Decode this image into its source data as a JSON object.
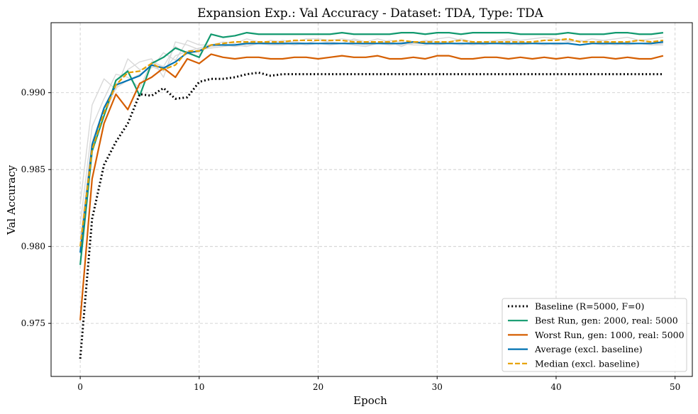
{
  "chart_data": {
    "type": "line",
    "title": "Expansion Exp.: Val Accuracy - Dataset: TDA, Type: TDA",
    "xlabel": "Epoch",
    "ylabel": "Val Accuracy",
    "xlim": [
      -2.45,
      51.45
    ],
    "ylim": [
      0.97155,
      0.99455
    ],
    "xticks": [
      0,
      10,
      20,
      30,
      40,
      50
    ],
    "yticks": [
      0.975,
      0.98,
      0.985,
      0.99
    ],
    "ytick_labels": [
      "0.975",
      "0.980",
      "0.985",
      "0.990"
    ],
    "grid": true,
    "legend_position": "lower-right",
    "background_runs": [
      [
        0.9828,
        0.9892,
        0.9909,
        0.9902,
        0.9922,
        0.9915,
        0.9916,
        0.9926,
        0.9921,
        0.9934,
        0.9931,
        0.9931,
        0.9933,
        0.9932,
        0.9935,
        0.9933,
        0.9932,
        0.9934,
        0.9933,
        0.9935,
        0.9935,
        0.9934,
        0.9935,
        0.9934,
        0.9933,
        0.9935,
        0.9933,
        0.993,
        0.9933,
        0.9933,
        0.9935,
        0.9936,
        0.9934,
        0.9932,
        0.9933,
        0.9934,
        0.9935,
        0.9934,
        0.9935,
        0.9936,
        0.9935,
        0.9934,
        0.9933,
        0.9935,
        0.9934,
        0.9935,
        0.9936,
        0.9934,
        0.9935,
        0.9936
      ],
      [
        0.9814,
        0.9878,
        0.9896,
        0.9912,
        0.991,
        0.9903,
        0.992,
        0.9917,
        0.993,
        0.9925,
        0.9928,
        0.993,
        0.9931,
        0.9931,
        0.9933,
        0.9932,
        0.9934,
        0.9933,
        0.9933,
        0.9932,
        0.9934,
        0.9933,
        0.9932,
        0.9935,
        0.9933,
        0.9932,
        0.9934,
        0.9933,
        0.9932,
        0.9934,
        0.9933,
        0.9933,
        0.9935,
        0.9933,
        0.9932,
        0.9933,
        0.9934,
        0.9933,
        0.9932,
        0.9934,
        0.9935,
        0.9933,
        0.9934,
        0.9933,
        0.9934,
        0.9932,
        0.9933,
        0.9934,
        0.9933,
        0.9932
      ],
      [
        0.9804,
        0.9868,
        0.989,
        0.9905,
        0.9915,
        0.992,
        0.9922,
        0.991,
        0.9933,
        0.9931,
        0.9928,
        0.9929,
        0.993,
        0.9931,
        0.993,
        0.9932,
        0.9931,
        0.9931,
        0.9932,
        0.9931,
        0.9932,
        0.9933,
        0.9932,
        0.9931,
        0.993,
        0.9932,
        0.9931,
        0.9932,
        0.9931,
        0.9931,
        0.9932,
        0.9932,
        0.9931,
        0.9932,
        0.9931,
        0.9933,
        0.9932,
        0.9931,
        0.9932,
        0.9932,
        0.9931,
        0.9932,
        0.9931,
        0.9932,
        0.9931,
        0.9932,
        0.9931,
        0.9932,
        0.9931,
        0.9931
      ],
      [
        0.9798,
        0.9862,
        0.9885,
        0.9903,
        0.9908,
        0.9912,
        0.9917,
        0.9914,
        0.9924,
        0.9927,
        0.9929,
        0.9931,
        0.9931,
        0.993,
        0.9931,
        0.9932,
        0.9931,
        0.9932,
        0.9931,
        0.9932,
        0.9932,
        0.9931,
        0.9932,
        0.9932,
        0.9931,
        0.9932,
        0.9933,
        0.9931,
        0.9932,
        0.9932,
        0.9931,
        0.9932,
        0.9932,
        0.9931,
        0.9932,
        0.9932,
        0.9931,
        0.9932,
        0.9932,
        0.9931,
        0.9932,
        0.9932,
        0.9931,
        0.9932,
        0.9932,
        0.9931,
        0.9932,
        0.9932,
        0.9931,
        0.9932
      ]
    ],
    "series": [
      {
        "name": "Baseline (R=5000, F=0)",
        "color": "#000000",
        "style": "dotted",
        "values": [
          0.9727,
          0.9818,
          0.9853,
          0.9868,
          0.988,
          0.9899,
          0.9898,
          0.9903,
          0.9896,
          0.9897,
          0.9907,
          0.9909,
          0.9909,
          0.991,
          0.9912,
          0.9913,
          0.9911,
          0.9912,
          0.9912,
          0.9912,
          0.9912,
          0.9912,
          0.9912,
          0.9912,
          0.9912,
          0.9912,
          0.9912,
          0.9912,
          0.9912,
          0.9912,
          0.9912,
          0.9912,
          0.9912,
          0.9912,
          0.9912,
          0.9912,
          0.9912,
          0.9912,
          0.9912,
          0.9912,
          0.9912,
          0.9912,
          0.9912,
          0.9912,
          0.9912,
          0.9912,
          0.9912,
          0.9912,
          0.9912,
          0.9912
        ]
      },
      {
        "name": "Best Run, gen: 2000, real: 5000",
        "color": "#11996e",
        "style": "solid",
        "values": [
          0.9788,
          0.9862,
          0.9885,
          0.9908,
          0.9914,
          0.9898,
          0.9919,
          0.9923,
          0.9929,
          0.9926,
          0.9923,
          0.9938,
          0.9936,
          0.9937,
          0.9939,
          0.9938,
          0.9938,
          0.9938,
          0.9938,
          0.9938,
          0.9938,
          0.9938,
          0.9939,
          0.9938,
          0.9938,
          0.9938,
          0.9938,
          0.9939,
          0.9939,
          0.9938,
          0.9939,
          0.9939,
          0.9938,
          0.9939,
          0.9939,
          0.9939,
          0.9939,
          0.9938,
          0.9938,
          0.9938,
          0.9938,
          0.9939,
          0.9938,
          0.9938,
          0.9938,
          0.9939,
          0.9939,
          0.9938,
          0.9938,
          0.9939
        ]
      },
      {
        "name": "Worst Run, gen: 1000, real: 5000",
        "color": "#d55e00",
        "style": "solid",
        "values": [
          0.9752,
          0.9844,
          0.988,
          0.9899,
          0.9889,
          0.9906,
          0.991,
          0.9916,
          0.991,
          0.9922,
          0.9919,
          0.9925,
          0.9923,
          0.9922,
          0.9923,
          0.9923,
          0.9922,
          0.9922,
          0.9923,
          0.9923,
          0.9922,
          0.9923,
          0.9924,
          0.9923,
          0.9923,
          0.9924,
          0.9922,
          0.9922,
          0.9923,
          0.9922,
          0.9924,
          0.9924,
          0.9922,
          0.9922,
          0.9923,
          0.9923,
          0.9922,
          0.9923,
          0.9922,
          0.9923,
          0.9922,
          0.9923,
          0.9922,
          0.9923,
          0.9923,
          0.9922,
          0.9923,
          0.9922,
          0.9922,
          0.9924
        ]
      },
      {
        "name": "Average (excl. baseline)",
        "color": "#0072b2",
        "style": "solid",
        "values": [
          0.9796,
          0.9866,
          0.989,
          0.9905,
          0.9908,
          0.9911,
          0.9918,
          0.9916,
          0.992,
          0.9926,
          0.9927,
          0.9931,
          0.9931,
          0.9931,
          0.9932,
          0.9932,
          0.9932,
          0.9932,
          0.9932,
          0.9932,
          0.9932,
          0.9932,
          0.9932,
          0.9932,
          0.9932,
          0.9932,
          0.9932,
          0.9932,
          0.9933,
          0.9932,
          0.9932,
          0.9932,
          0.9932,
          0.9932,
          0.9932,
          0.9932,
          0.9932,
          0.9932,
          0.9932,
          0.9932,
          0.9932,
          0.9932,
          0.9931,
          0.9932,
          0.9932,
          0.9932,
          0.9932,
          0.9932,
          0.9932,
          0.9933
        ]
      },
      {
        "name": "Median (excl. baseline)",
        "color": "#e69f00",
        "style": "dashed",
        "values": [
          0.98,
          0.9863,
          0.9887,
          0.9905,
          0.9913,
          0.9914,
          0.9919,
          0.9915,
          0.9918,
          0.9927,
          0.9927,
          0.9931,
          0.9932,
          0.9933,
          0.9933,
          0.9933,
          0.9933,
          0.9933,
          0.9934,
          0.9934,
          0.9934,
          0.9934,
          0.9934,
          0.9933,
          0.9933,
          0.9933,
          0.9933,
          0.9934,
          0.9933,
          0.9933,
          0.9933,
          0.9933,
          0.9934,
          0.9933,
          0.9933,
          0.9933,
          0.9933,
          0.9933,
          0.9933,
          0.9934,
          0.9934,
          0.9935,
          0.9933,
          0.9933,
          0.9933,
          0.9933,
          0.9933,
          0.9934,
          0.9933,
          0.9934
        ]
      }
    ]
  }
}
